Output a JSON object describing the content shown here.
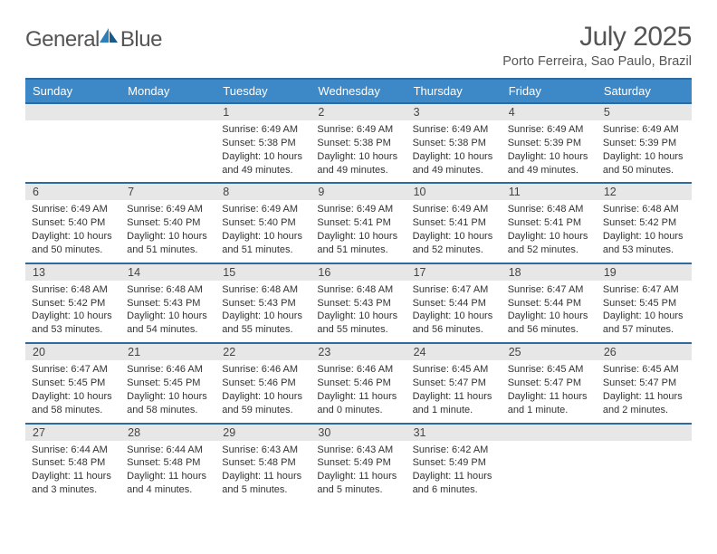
{
  "logo": {
    "text1": "General",
    "text2": "Blue"
  },
  "title": "July 2025",
  "location": "Porto Ferreira, Sao Paulo, Brazil",
  "colors": {
    "header_bg": "#3d88c7",
    "header_border": "#2c6aa0",
    "daynum_bg": "#e7e7e7",
    "text": "#333333",
    "title_text": "#555555"
  },
  "dayNames": [
    "Sunday",
    "Monday",
    "Tuesday",
    "Wednesday",
    "Thursday",
    "Friday",
    "Saturday"
  ],
  "weeks": [
    {
      "nums": [
        "",
        "",
        "1",
        "2",
        "3",
        "4",
        "5"
      ],
      "cells": [
        null,
        null,
        {
          "sunrise": "6:49 AM",
          "sunset": "5:38 PM",
          "daylight": "10 hours and 49 minutes."
        },
        {
          "sunrise": "6:49 AM",
          "sunset": "5:38 PM",
          "daylight": "10 hours and 49 minutes."
        },
        {
          "sunrise": "6:49 AM",
          "sunset": "5:38 PM",
          "daylight": "10 hours and 49 minutes."
        },
        {
          "sunrise": "6:49 AM",
          "sunset": "5:39 PM",
          "daylight": "10 hours and 49 minutes."
        },
        {
          "sunrise": "6:49 AM",
          "sunset": "5:39 PM",
          "daylight": "10 hours and 50 minutes."
        }
      ]
    },
    {
      "nums": [
        "6",
        "7",
        "8",
        "9",
        "10",
        "11",
        "12"
      ],
      "cells": [
        {
          "sunrise": "6:49 AM",
          "sunset": "5:40 PM",
          "daylight": "10 hours and 50 minutes."
        },
        {
          "sunrise": "6:49 AM",
          "sunset": "5:40 PM",
          "daylight": "10 hours and 51 minutes."
        },
        {
          "sunrise": "6:49 AM",
          "sunset": "5:40 PM",
          "daylight": "10 hours and 51 minutes."
        },
        {
          "sunrise": "6:49 AM",
          "sunset": "5:41 PM",
          "daylight": "10 hours and 51 minutes."
        },
        {
          "sunrise": "6:49 AM",
          "sunset": "5:41 PM",
          "daylight": "10 hours and 52 minutes."
        },
        {
          "sunrise": "6:48 AM",
          "sunset": "5:41 PM",
          "daylight": "10 hours and 52 minutes."
        },
        {
          "sunrise": "6:48 AM",
          "sunset": "5:42 PM",
          "daylight": "10 hours and 53 minutes."
        }
      ]
    },
    {
      "nums": [
        "13",
        "14",
        "15",
        "16",
        "17",
        "18",
        "19"
      ],
      "cells": [
        {
          "sunrise": "6:48 AM",
          "sunset": "5:42 PM",
          "daylight": "10 hours and 53 minutes."
        },
        {
          "sunrise": "6:48 AM",
          "sunset": "5:43 PM",
          "daylight": "10 hours and 54 minutes."
        },
        {
          "sunrise": "6:48 AM",
          "sunset": "5:43 PM",
          "daylight": "10 hours and 55 minutes."
        },
        {
          "sunrise": "6:48 AM",
          "sunset": "5:43 PM",
          "daylight": "10 hours and 55 minutes."
        },
        {
          "sunrise": "6:47 AM",
          "sunset": "5:44 PM",
          "daylight": "10 hours and 56 minutes."
        },
        {
          "sunrise": "6:47 AM",
          "sunset": "5:44 PM",
          "daylight": "10 hours and 56 minutes."
        },
        {
          "sunrise": "6:47 AM",
          "sunset": "5:45 PM",
          "daylight": "10 hours and 57 minutes."
        }
      ]
    },
    {
      "nums": [
        "20",
        "21",
        "22",
        "23",
        "24",
        "25",
        "26"
      ],
      "cells": [
        {
          "sunrise": "6:47 AM",
          "sunset": "5:45 PM",
          "daylight": "10 hours and 58 minutes."
        },
        {
          "sunrise": "6:46 AM",
          "sunset": "5:45 PM",
          "daylight": "10 hours and 58 minutes."
        },
        {
          "sunrise": "6:46 AM",
          "sunset": "5:46 PM",
          "daylight": "10 hours and 59 minutes."
        },
        {
          "sunrise": "6:46 AM",
          "sunset": "5:46 PM",
          "daylight": "11 hours and 0 minutes."
        },
        {
          "sunrise": "6:45 AM",
          "sunset": "5:47 PM",
          "daylight": "11 hours and 1 minute."
        },
        {
          "sunrise": "6:45 AM",
          "sunset": "5:47 PM",
          "daylight": "11 hours and 1 minute."
        },
        {
          "sunrise": "6:45 AM",
          "sunset": "5:47 PM",
          "daylight": "11 hours and 2 minutes."
        }
      ]
    },
    {
      "nums": [
        "27",
        "28",
        "29",
        "30",
        "31",
        "",
        ""
      ],
      "cells": [
        {
          "sunrise": "6:44 AM",
          "sunset": "5:48 PM",
          "daylight": "11 hours and 3 minutes."
        },
        {
          "sunrise": "6:44 AM",
          "sunset": "5:48 PM",
          "daylight": "11 hours and 4 minutes."
        },
        {
          "sunrise": "6:43 AM",
          "sunset": "5:48 PM",
          "daylight": "11 hours and 5 minutes."
        },
        {
          "sunrise": "6:43 AM",
          "sunset": "5:49 PM",
          "daylight": "11 hours and 5 minutes."
        },
        {
          "sunrise": "6:42 AM",
          "sunset": "5:49 PM",
          "daylight": "11 hours and 6 minutes."
        },
        null,
        null
      ]
    }
  ]
}
